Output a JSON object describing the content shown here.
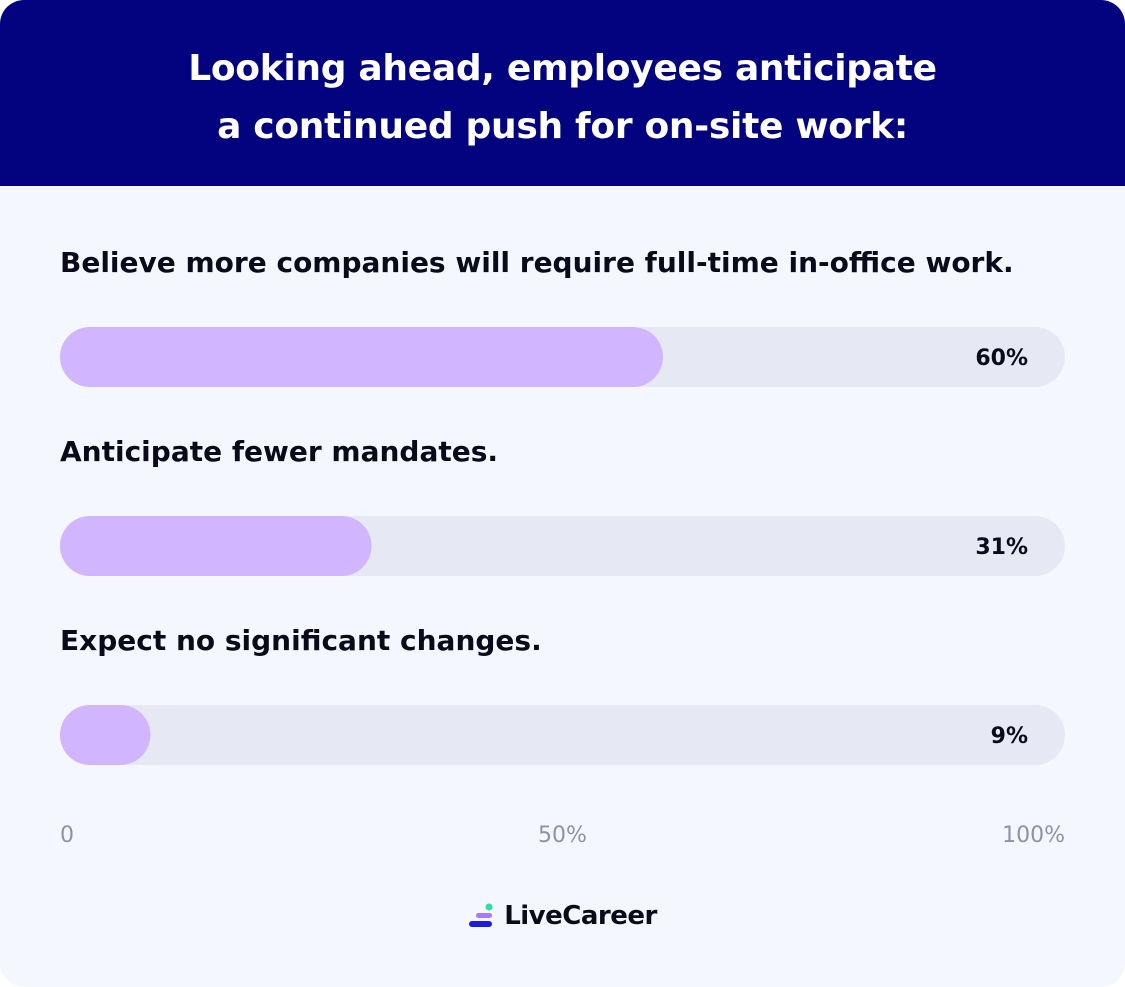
{
  "header": {
    "title_line1": "Looking ahead, employees anticipate",
    "title_line2": "a continued push for on-site work:"
  },
  "colors": {
    "header_bg": "#03037f",
    "card_bg": "#f4f7fe",
    "bar_track": "#e6e9f4",
    "bar_fill": "#d1b5fe",
    "text": "#0a0a1a",
    "tick_text": "#8c93a6"
  },
  "chart_data": {
    "type": "bar",
    "orientation": "horizontal",
    "categories": [
      "Believe more companies will require full-time in-office work.",
      "Anticipate fewer mandates.",
      "Expect no significant changes."
    ],
    "values": [
      60,
      31,
      9
    ],
    "value_labels": [
      "60%",
      "31%",
      "9%"
    ],
    "xlim": [
      0,
      100
    ],
    "ticks": [
      {
        "value": 0,
        "label": "0"
      },
      {
        "value": 50,
        "label": "50%"
      },
      {
        "value": 100,
        "label": "100%"
      }
    ],
    "grid": false,
    "legend": "none"
  },
  "footer": {
    "brand_name": "LiveCareer",
    "logo_icon": "livecareer-logo-icon"
  }
}
